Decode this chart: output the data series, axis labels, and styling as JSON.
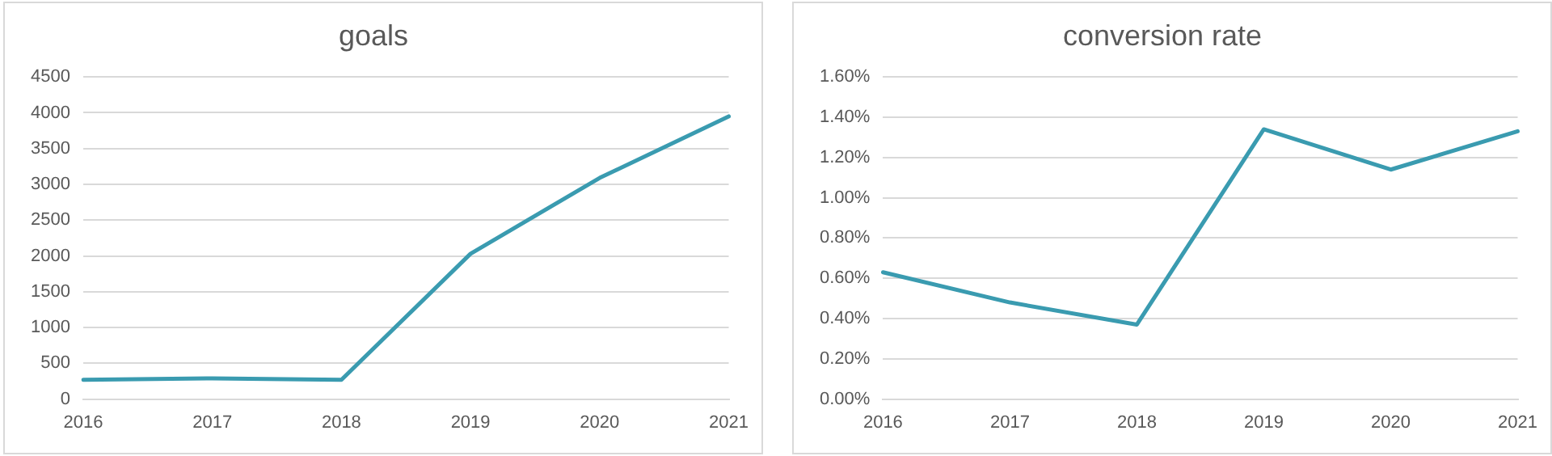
{
  "chart_data": [
    {
      "type": "line",
      "title": "goals",
      "categories": [
        "2016",
        "2017",
        "2018",
        "2019",
        "2020",
        "2021"
      ],
      "series": [
        {
          "color": "#3a9bb0",
          "values": [
            270,
            290,
            270,
            2030,
            3090,
            3950
          ]
        }
      ],
      "ylim": [
        0,
        4500
      ],
      "yticks": [
        0,
        500,
        1000,
        1500,
        2000,
        2500,
        3000,
        3500,
        4000,
        4500
      ],
      "grid": "y",
      "legend": false,
      "marker": "none",
      "line_style": "solid"
    },
    {
      "type": "line",
      "title": "conversion rate",
      "categories": [
        "2016",
        "2017",
        "2018",
        "2019",
        "2020",
        "2021"
      ],
      "series": [
        {
          "color": "#3a9bb0",
          "values": [
            0.63,
            0.48,
            0.37,
            1.34,
            1.14,
            1.33
          ]
        }
      ],
      "ylim": [
        0,
        1.6
      ],
      "yticks": [
        {
          "value": 0,
          "label": "0.00%"
        },
        {
          "value": 0.2,
          "label": "0.20%"
        },
        {
          "value": 0.4,
          "label": "0.40%"
        },
        {
          "value": 0.6,
          "label": "0.60%"
        },
        {
          "value": 0.8,
          "label": "0.80%"
        },
        {
          "value": 1.0,
          "label": "1.00%"
        },
        {
          "value": 1.2,
          "label": "1.20%"
        },
        {
          "value": 1.4,
          "label": "1.40%"
        },
        {
          "value": 1.6,
          "label": "1.60%"
        }
      ],
      "grid": "y",
      "legend": false,
      "marker": "none",
      "line_style": "solid"
    }
  ]
}
